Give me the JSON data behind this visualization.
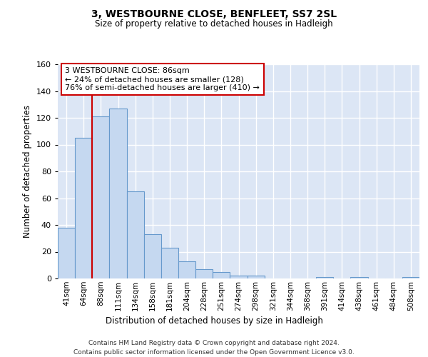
{
  "title1": "3, WESTBOURNE CLOSE, BENFLEET, SS7 2SL",
  "title2": "Size of property relative to detached houses in Hadleigh",
  "xlabel": "Distribution of detached houses by size in Hadleigh",
  "ylabel": "Number of detached properties",
  "bar_labels": [
    "41sqm",
    "64sqm",
    "88sqm",
    "111sqm",
    "134sqm",
    "158sqm",
    "181sqm",
    "204sqm",
    "228sqm",
    "251sqm",
    "274sqm",
    "298sqm",
    "321sqm",
    "344sqm",
    "368sqm",
    "391sqm",
    "414sqm",
    "438sqm",
    "461sqm",
    "484sqm",
    "508sqm"
  ],
  "bar_values": [
    38,
    105,
    121,
    127,
    65,
    33,
    23,
    13,
    7,
    5,
    2,
    2,
    0,
    0,
    0,
    1,
    0,
    1,
    0,
    0,
    1
  ],
  "bar_color": "#c5d8f0",
  "bar_edge_color": "#6699cc",
  "vline_x": 1.5,
  "vline_color": "#cc0000",
  "annotation_line1": "3 WESTBOURNE CLOSE: 86sqm",
  "annotation_line2": "← 24% of detached houses are smaller (128)",
  "annotation_line3": "76% of semi-detached houses are larger (410) →",
  "annotation_box_color": "#ffffff",
  "annotation_box_edge_color": "#cc0000",
  "ylim": [
    0,
    160
  ],
  "yticks": [
    0,
    20,
    40,
    60,
    80,
    100,
    120,
    140,
    160
  ],
  "background_color": "#dce6f5",
  "grid_color": "#ffffff",
  "footer_line1": "Contains HM Land Registry data © Crown copyright and database right 2024.",
  "footer_line2": "Contains public sector information licensed under the Open Government Licence v3.0."
}
